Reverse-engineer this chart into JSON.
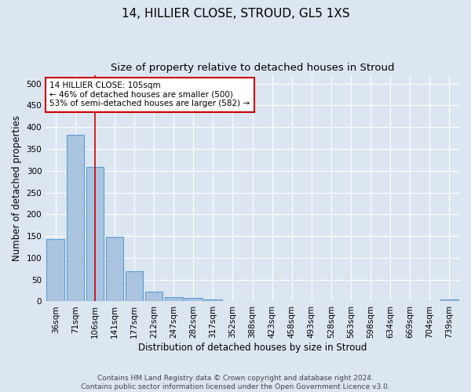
{
  "title": "14, HILLIER CLOSE, STROUD, GL5 1XS",
  "subtitle": "Size of property relative to detached houses in Stroud",
  "xlabel": "Distribution of detached houses by size in Stroud",
  "ylabel": "Number of detached properties",
  "categories": [
    "36sqm",
    "71sqm",
    "106sqm",
    "141sqm",
    "177sqm",
    "212sqm",
    "247sqm",
    "282sqm",
    "317sqm",
    "352sqm",
    "388sqm",
    "423sqm",
    "458sqm",
    "493sqm",
    "528sqm",
    "563sqm",
    "598sqm",
    "634sqm",
    "669sqm",
    "704sqm",
    "739sqm"
  ],
  "values": [
    143,
    383,
    308,
    148,
    69,
    23,
    10,
    8,
    4,
    0,
    0,
    0,
    0,
    0,
    0,
    0,
    0,
    0,
    0,
    0,
    4
  ],
  "bar_color": "#aac4e0",
  "bar_edge_color": "#5b9bd5",
  "vline_x": 2,
  "vline_color": "#cc0000",
  "annotation_text": "14 HILLIER CLOSE: 105sqm\n← 46% of detached houses are smaller (500)\n53% of semi-detached houses are larger (582) →",
  "annotation_box_color": "#ffffff",
  "annotation_box_edge": "#cc0000",
  "ylim": [
    0,
    520
  ],
  "yticks": [
    0,
    50,
    100,
    150,
    200,
    250,
    300,
    350,
    400,
    450,
    500
  ],
  "bg_color": "#dce6f1",
  "plot_bg_color": "#dce6f1",
  "footer": "Contains HM Land Registry data © Crown copyright and database right 2024.\nContains public sector information licensed under the Open Government Licence v3.0.",
  "title_fontsize": 11,
  "subtitle_fontsize": 9.5,
  "axis_label_fontsize": 8.5,
  "tick_fontsize": 7.5,
  "footer_fontsize": 6.5,
  "ann_fontsize": 7.5
}
